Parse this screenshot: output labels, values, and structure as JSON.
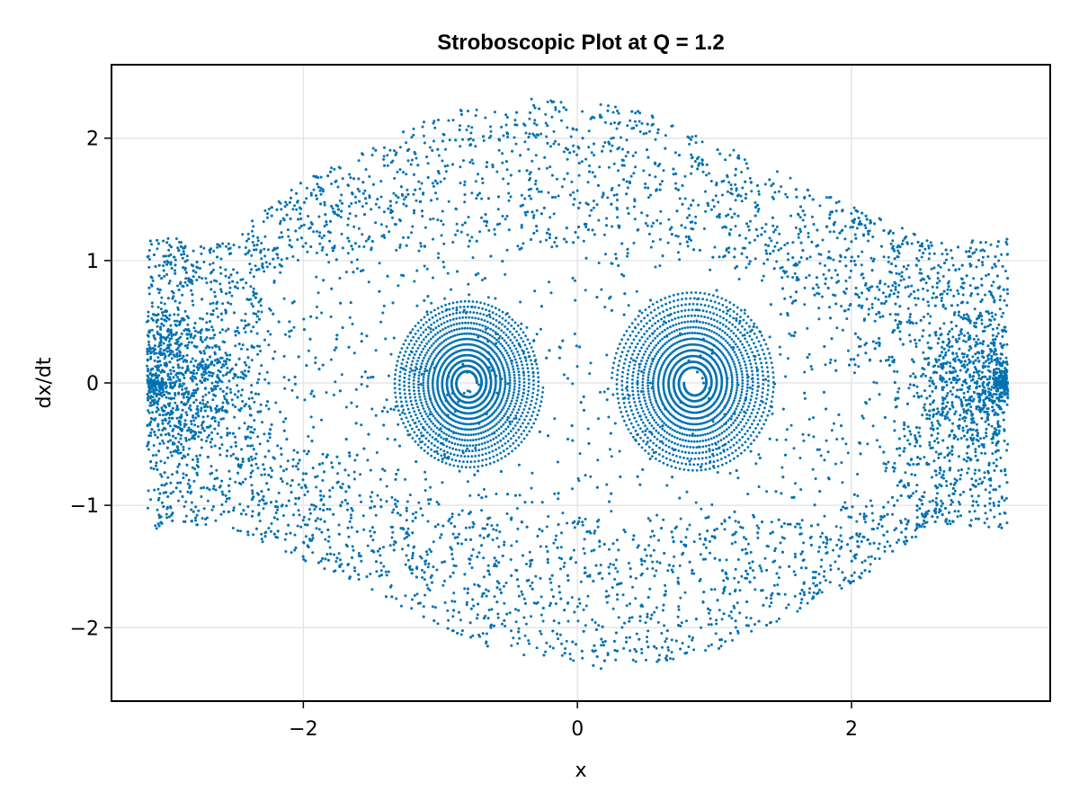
{
  "chart_data": {
    "type": "scatter",
    "title": "Stroboscopic Plot at Q = 1.2",
    "xlabel": "x",
    "ylabel": "dx/dt",
    "xlim": [
      -3.4,
      3.45
    ],
    "ylim": [
      -2.6,
      2.6
    ],
    "xticks": [
      -2,
      0,
      2
    ],
    "xtick_labels": [
      "−2",
      "0",
      "2"
    ],
    "yticks": [
      -2,
      -1,
      0,
      1,
      2
    ],
    "ytick_labels": [
      "−2",
      "−1",
      "0",
      "1",
      "2"
    ],
    "grid": true,
    "legend": "none",
    "marker_color": "#0072b2",
    "series": [
      {
        "description_points": "dense stroboscopic point cloud",
        "x_range": [
          -3.14159,
          3.14159
        ],
        "y_range": [
          -2.36,
          2.36
        ],
        "envelope_upper": [
          [
            -3.14,
            1.2
          ],
          [
            -2.6,
            1.15
          ],
          [
            -2.0,
            1.65
          ],
          [
            -1.0,
            2.2
          ],
          [
            -0.2,
            2.36
          ],
          [
            0.6,
            2.2
          ],
          [
            1.6,
            1.65
          ],
          [
            2.6,
            1.15
          ],
          [
            3.14,
            1.2
          ]
        ],
        "envelope_lower": [
          [
            -3.14,
            -1.2
          ],
          [
            -2.6,
            -1.15
          ],
          [
            -1.6,
            -1.65
          ],
          [
            -0.6,
            -2.2
          ],
          [
            0.2,
            -2.36
          ],
          [
            1.0,
            -2.2
          ],
          [
            2.0,
            -1.65
          ],
          [
            2.6,
            -1.15
          ],
          [
            3.14,
            -1.2
          ]
        ],
        "inner_upper": [
          [
            -2.6,
            0.8
          ],
          [
            -1.8,
            1.08
          ],
          [
            -0.5,
            1.1
          ],
          [
            0.6,
            1.1
          ],
          [
            1.5,
            0.85
          ],
          [
            2.0,
            0.55
          ],
          [
            2.3,
            0.45
          ]
        ],
        "inner_lower": [
          [
            -2.3,
            -0.45
          ],
          [
            -2.0,
            -0.55
          ],
          [
            -1.5,
            -0.85
          ],
          [
            -0.6,
            -1.1
          ],
          [
            0.5,
            -1.1
          ],
          [
            1.8,
            -1.08
          ],
          [
            2.6,
            -0.8
          ]
        ],
        "vortices": [
          {
            "center": [
              -0.8,
              0.0
            ],
            "radius_x": 0.55,
            "radius_y": 0.7
          },
          {
            "center": [
              0.85,
              0.0
            ],
            "radius_x": 0.6,
            "radius_y": 0.75
          }
        ],
        "side_lobes": [
          {
            "center": [
              -3.1,
              0.0
            ],
            "radius_x": 0.6,
            "radius_y": 0.6
          },
          {
            "center": [
              3.1,
              0.0
            ],
            "radius_x": 0.6,
            "radius_y": 0.6
          }
        ]
      }
    ]
  }
}
